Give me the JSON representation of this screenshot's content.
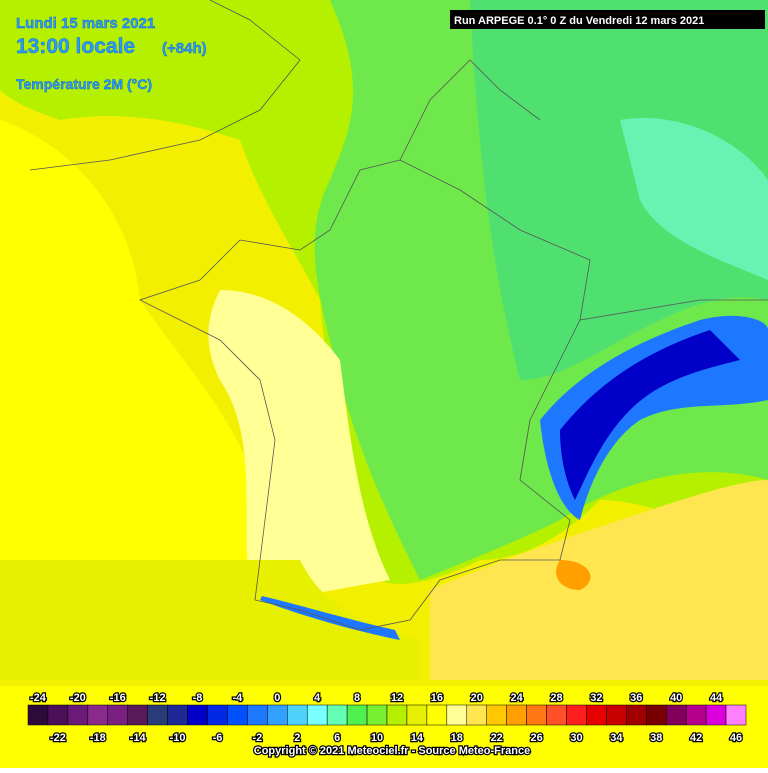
{
  "header": {
    "date": "Lundi 15 mars 2021",
    "time": "13:00 locale",
    "lead": "(+84h)",
    "variable": "Température 2M (°C)"
  },
  "run": "Run ARPEGE 0.1° 0 Z du Vendredi 12 mars 2021",
  "legend": {
    "stops": [
      -24,
      -22,
      -20,
      -18,
      -16,
      -14,
      -12,
      -10,
      -8,
      -6,
      -4,
      -2,
      0,
      2,
      4,
      6,
      8,
      10,
      12,
      14,
      16,
      18,
      20,
      22,
      24,
      26,
      28,
      30,
      32,
      34,
      36,
      38,
      40,
      42,
      44,
      46
    ],
    "colors": [
      "#2d0a3a",
      "#4b1058",
      "#6a1a78",
      "#8a2a8a",
      "#7a2080",
      "#5a1a5a",
      "#283c78",
      "#1e2896",
      "#0000c8",
      "#0028e6",
      "#0050ff",
      "#1e78ff",
      "#32a0ff",
      "#50d2ff",
      "#78ffff",
      "#64ffb4",
      "#50f050",
      "#78f032",
      "#b4f000",
      "#e6f000",
      "#ffff00",
      "#ffff96",
      "#ffe650",
      "#ffc800",
      "#ffa000",
      "#ff7814",
      "#ff5028",
      "#ff1e1e",
      "#e60000",
      "#c80000",
      "#a00000",
      "#780000",
      "#82005a",
      "#b4008c",
      "#dc00dc",
      "#ff80ff"
    ]
  },
  "copyright": "Copyright © 2021 Meteociel.fr - Source Meteo-France"
}
